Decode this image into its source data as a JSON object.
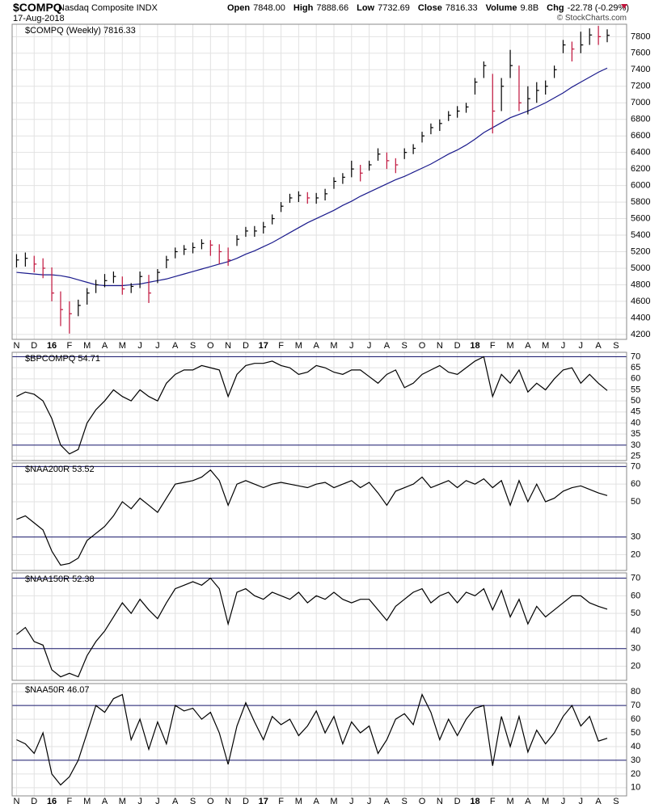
{
  "header": {
    "symbol": "$COMPQ",
    "name": "Nasdaq Composite INDX",
    "date": "17-Aug-2018",
    "stats": [
      {
        "label": "Open",
        "value": "7848.00"
      },
      {
        "label": "High",
        "value": "7888.66"
      },
      {
        "label": "Low",
        "value": "7732.69"
      },
      {
        "label": "Close",
        "value": "7816.33"
      },
      {
        "label": "Volume",
        "value": "9.8B"
      },
      {
        "label": "Chg",
        "value": "-22.78 (-0.29%)"
      }
    ],
    "copyright": "© StockCharts.com"
  },
  "chart_data": {
    "type": "stock_panels",
    "grid": true,
    "grid_color": "#e2e2e2",
    "ref_color": "#1a1a6e",
    "x": [
      0,
      0.5,
      1,
      1.5,
      2,
      2.5,
      3,
      3.5,
      4,
      4.5,
      5,
      5.5,
      6,
      6.5,
      7,
      7.5,
      8,
      8.5,
      9,
      9.5,
      10,
      10.5,
      11,
      11.5,
      12,
      12.5,
      13,
      13.5,
      14,
      14.5,
      15,
      15.5,
      16,
      16.5,
      17,
      17.5,
      18,
      18.5,
      19,
      19.5,
      20,
      20.5,
      21,
      21.5,
      22,
      22.5,
      23,
      23.5,
      24,
      24.5,
      25,
      25.5,
      26,
      26.5,
      27,
      27.5,
      28,
      28.5,
      29,
      29.5,
      30,
      30.5,
      31,
      31.5,
      32,
      32.5,
      33,
      33.5
    ],
    "xlim": [
      -0.25,
      34.6
    ],
    "xticks": [
      {
        "value": 0,
        "label": "N"
      },
      {
        "value": 1,
        "label": "D"
      },
      {
        "value": 2,
        "label": "16"
      },
      {
        "value": 3,
        "label": "F"
      },
      {
        "value": 4,
        "label": "M"
      },
      {
        "value": 5,
        "label": "A"
      },
      {
        "value": 6,
        "label": "M"
      },
      {
        "value": 7,
        "label": "J"
      },
      {
        "value": 8,
        "label": "J"
      },
      {
        "value": 9,
        "label": "A"
      },
      {
        "value": 10,
        "label": "S"
      },
      {
        "value": 11,
        "label": "O"
      },
      {
        "value": 12,
        "label": "N"
      },
      {
        "value": 13,
        "label": "D"
      },
      {
        "value": 14,
        "label": "17"
      },
      {
        "value": 15,
        "label": "F"
      },
      {
        "value": 16,
        "label": "M"
      },
      {
        "value": 17,
        "label": "A"
      },
      {
        "value": 18,
        "label": "M"
      },
      {
        "value": 19,
        "label": "J"
      },
      {
        "value": 20,
        "label": "J"
      },
      {
        "value": 21,
        "label": "A"
      },
      {
        "value": 22,
        "label": "S"
      },
      {
        "value": 23,
        "label": "O"
      },
      {
        "value": 24,
        "label": "N"
      },
      {
        "value": 25,
        "label": "D"
      },
      {
        "value": 26,
        "label": "18"
      },
      {
        "value": 27,
        "label": "F"
      },
      {
        "value": 28,
        "label": "M"
      },
      {
        "value": 29,
        "label": "A"
      },
      {
        "value": 30,
        "label": "M"
      },
      {
        "value": 31,
        "label": "J"
      },
      {
        "value": 32,
        "label": "J"
      },
      {
        "value": 33,
        "label": "A"
      },
      {
        "value": 34,
        "label": "S"
      }
    ],
    "panels": [
      {
        "type": "ohlc",
        "label": "$COMPQ (Weekly) 7816.33",
        "up_color": "#000000",
        "down_color": "#c0143c",
        "ylim": [
          4140,
          7950
        ],
        "yticks": [
          4200,
          4400,
          4600,
          4800,
          5000,
          5200,
          5400,
          5600,
          5800,
          6000,
          6200,
          6400,
          6600,
          6800,
          7000,
          7200,
          7400,
          7600,
          7800
        ],
        "high": [
          5170,
          5190,
          5150,
          5120,
          5010,
          4720,
          4600,
          4620,
          4760,
          4860,
          4930,
          4960,
          4900,
          4820,
          4960,
          4920,
          4990,
          5150,
          5250,
          5280,
          5310,
          5350,
          5340,
          5290,
          5250,
          5400,
          5500,
          5510,
          5560,
          5650,
          5800,
          5900,
          5930,
          5920,
          5910,
          5960,
          6100,
          6150,
          6300,
          6250,
          6300,
          6450,
          6400,
          6330,
          6450,
          6500,
          6650,
          6750,
          6800,
          6900,
          6960,
          7000,
          7300,
          7500,
          7350,
          7300,
          7640,
          7450,
          7200,
          7250,
          7270,
          7450,
          7760,
          7740,
          7860,
          7900,
          7930,
          7888.66
        ],
        "low": [
          5010,
          5020,
          4950,
          4880,
          4600,
          4300,
          4210,
          4420,
          4560,
          4700,
          4770,
          4820,
          4680,
          4700,
          4760,
          4580,
          4820,
          5000,
          5120,
          5160,
          5180,
          5230,
          5150,
          5050,
          5030,
          5270,
          5380,
          5380,
          5420,
          5530,
          5680,
          5790,
          5800,
          5780,
          5780,
          5820,
          5960,
          6020,
          6100,
          6050,
          6180,
          6300,
          6200,
          6150,
          6320,
          6380,
          6520,
          6620,
          6660,
          6780,
          6820,
          6880,
          7100,
          7300,
          6630,
          6900,
          7300,
          6900,
          6860,
          7000,
          7100,
          7300,
          7600,
          7500,
          7600,
          7700,
          7700,
          7732.69
        ],
        "close": [
          5100,
          5120,
          5050,
          5000,
          4700,
          4500,
          4450,
          4550,
          4700,
          4800,
          4850,
          4900,
          4750,
          4780,
          4900,
          4700,
          4950,
          5100,
          5200,
          5230,
          5250,
          5300,
          5280,
          5200,
          5100,
          5350,
          5450,
          5450,
          5500,
          5600,
          5750,
          5850,
          5880,
          5850,
          5850,
          5900,
          6050,
          6100,
          6200,
          6150,
          6250,
          6380,
          6300,
          6250,
          6400,
          6450,
          6600,
          6700,
          6750,
          6850,
          6900,
          6950,
          7250,
          7450,
          6900,
          7200,
          7450,
          7000,
          7050,
          7150,
          7200,
          7400,
          7700,
          7650,
          7700,
          7820,
          7800,
          7816.33
        ],
        "ma": {
          "color": "#1a1a8c",
          "values": [
            4950,
            4940,
            4930,
            4920,
            4920,
            4910,
            4890,
            4860,
            4830,
            4800,
            4790,
            4790,
            4790,
            4800,
            4810,
            4830,
            4850,
            4870,
            4900,
            4930,
            4960,
            4990,
            5020,
            5050,
            5080,
            5120,
            5170,
            5210,
            5260,
            5310,
            5370,
            5430,
            5490,
            5550,
            5600,
            5650,
            5700,
            5760,
            5810,
            5870,
            5920,
            5970,
            6020,
            6070,
            6110,
            6160,
            6210,
            6260,
            6320,
            6380,
            6430,
            6490,
            6560,
            6640,
            6700,
            6760,
            6820,
            6860,
            6900,
            6950,
            7000,
            7060,
            7120,
            7190,
            7250,
            7310,
            7370,
            7420
          ]
        }
      },
      {
        "type": "line",
        "label": "$BPCOMPQ 54.71",
        "color": "#000000",
        "ylim": [
          23,
          72
        ],
        "yticks": [
          25,
          30,
          35,
          40,
          45,
          50,
          55,
          60,
          65,
          70
        ],
        "ref_lines": [
          30,
          70
        ],
        "values": [
          52,
          54,
          53,
          50,
          42,
          30,
          26,
          28,
          40,
          46,
          50,
          55,
          52,
          50,
          55,
          52,
          50,
          58,
          62,
          64,
          64,
          66,
          65,
          64,
          52,
          62,
          66,
          67,
          67,
          68,
          66,
          65,
          62,
          63,
          66,
          65,
          63,
          62,
          64,
          64,
          61,
          58,
          62,
          64,
          56,
          58,
          62,
          64,
          66,
          63,
          62,
          65,
          68,
          70,
          52,
          62,
          58,
          64,
          54,
          58,
          55,
          60,
          64,
          65,
          58,
          62,
          58,
          54.71
        ]
      },
      {
        "type": "line",
        "label": "$NAA200R 53.52",
        "color": "#000000",
        "ylim": [
          11,
          72
        ],
        "yticks": [
          20,
          30,
          50,
          60,
          70
        ],
        "ref_lines": [
          30,
          70
        ],
        "values": [
          40,
          42,
          38,
          34,
          22,
          14,
          15,
          18,
          28,
          32,
          36,
          42,
          50,
          46,
          52,
          48,
          44,
          52,
          60,
          61,
          62,
          64,
          68,
          62,
          48,
          60,
          62,
          60,
          58,
          60,
          61,
          60,
          59,
          58,
          60,
          61,
          58,
          60,
          62,
          58,
          61,
          55,
          48,
          56,
          58,
          60,
          64,
          58,
          60,
          62,
          58,
          62,
          60,
          63,
          58,
          62,
          48,
          62,
          50,
          60,
          50,
          52,
          56,
          58,
          59,
          57,
          55,
          53.52
        ]
      },
      {
        "type": "line",
        "label": "$NAA150R 52.38",
        "color": "#000000",
        "ylim": [
          12,
          73
        ],
        "yticks": [
          20,
          30,
          40,
          50,
          60,
          70
        ],
        "ref_lines": [
          30,
          70
        ],
        "values": [
          38,
          42,
          34,
          32,
          18,
          14,
          16,
          14,
          26,
          34,
          40,
          48,
          56,
          50,
          58,
          52,
          47,
          56,
          64,
          66,
          68,
          66,
          70,
          64,
          44,
          62,
          64,
          60,
          58,
          62,
          60,
          58,
          62,
          56,
          60,
          58,
          62,
          58,
          56,
          58,
          58,
          52,
          46,
          54,
          58,
          62,
          64,
          56,
          60,
          62,
          56,
          62,
          60,
          64,
          52,
          63,
          48,
          58,
          44,
          54,
          48,
          52,
          56,
          60,
          60,
          56,
          54,
          52.38
        ]
      },
      {
        "type": "line",
        "label": "$NAA50R 46.07",
        "color": "#000000",
        "ylim": [
          4,
          86
        ],
        "yticks": [
          10,
          20,
          30,
          40,
          50,
          60,
          70,
          80
        ],
        "ref_lines": [
          30,
          70
        ],
        "values": [
          45,
          42,
          35,
          50,
          20,
          12,
          18,
          30,
          50,
          70,
          65,
          75,
          78,
          45,
          60,
          38,
          58,
          42,
          70,
          66,
          68,
          60,
          65,
          50,
          27,
          55,
          72,
          58,
          45,
          62,
          56,
          60,
          48,
          55,
          66,
          50,
          62,
          42,
          58,
          50,
          55,
          35,
          45,
          60,
          64,
          56,
          78,
          65,
          45,
          60,
          48,
          60,
          68,
          70,
          26,
          62,
          40,
          62,
          36,
          52,
          42,
          50,
          62,
          70,
          55,
          62,
          44,
          46.07
        ]
      }
    ]
  }
}
